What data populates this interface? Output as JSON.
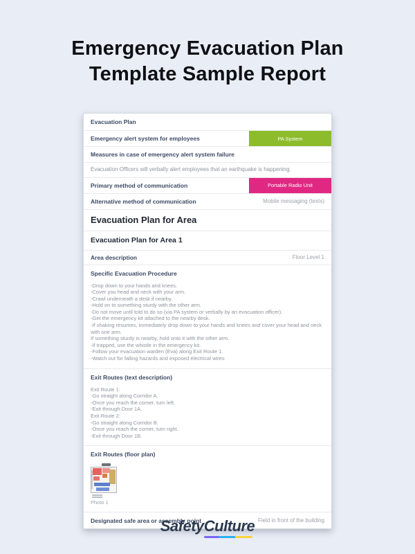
{
  "page": {
    "title": {
      "line1": "Emergency Evacuation Plan",
      "line2": "Template Sample Report"
    }
  },
  "report": {
    "section_header": "Evacuation Plan",
    "alert_system": {
      "label": "Emergency alert system for employees",
      "value": "PA System"
    },
    "failure_measures": {
      "label": "Measures in case of emergency alert system failure",
      "answer": "Evacuation Officers will verbally alert employees that an earthquake is happening."
    },
    "primary_comm": {
      "label": "Primary method of communication",
      "value": "Portable Radio Unit"
    },
    "alt_comm": {
      "label": "Alternative method of communication",
      "value": "Mobile messaging (texts)"
    },
    "area_section_header": "Evacuation Plan for Area",
    "area1_header": "Evacuation Plan for Area 1",
    "area_description": {
      "label": "Area description",
      "value": "Floor Level 1"
    },
    "procedure": {
      "label": "Specific Evacuation Procedure",
      "lines": [
        "-Drop down to your hands and knees.",
        "-Cover you head and neck with your arm.",
        "-Crawl underneath a desk if nearby.",
        "-Hold on to something sturdy with the other arm.",
        "-Do not move until told to do so (via PA system or verbally by an evacuation officer).",
        "-Get the emergency kit attached to the nearby desk.",
        "-If shaking resumes, immediately drop down to your hands and knees and cover your head and neck with one arm.",
        "If something sturdy is nearby, hold onto it with the other arm.",
        "-If trapped, use the whistle in the emergency kit.",
        "-Follow your evacuation warden (Eva) along Exit Route 1.",
        "-Watch out for falling hazards and exposed electrical wires"
      ]
    },
    "exit_routes_text": {
      "label": "Exit Routes (text description)",
      "lines": [
        "Exit Route 1:",
        "-Go straight along Corridor A.",
        "-Once you reach the corner, turn left.",
        "-Exit through Door 1A.",
        "Exit Route 2:",
        "-Go straight along Corridor B.",
        "-Once you reach the corner, turn right.",
        "-Exit through Door 1B."
      ]
    },
    "exit_routes_plan": {
      "label": "Exit Routes (floor plan)",
      "photo_caption": "Photo 1"
    },
    "safe_area": {
      "label": "Designated safe area or assembly point",
      "value": "Field in front of the building"
    }
  },
  "footer": {
    "brand": "SafetyCulture"
  },
  "colors": {
    "page_bg": "#e9edf6",
    "badge_green": "#8cbb2c",
    "badge_pink": "#e02883",
    "label_navy": "#3c4a63",
    "heading_dark": "#20262f",
    "body_gray": "#8f939b",
    "value_gray": "#9b9fa7",
    "separator": "#e8e9ec",
    "brand_navy": "#2c3a4e",
    "brand_underline_purple": "#7a66f6",
    "brand_underline_blue": "#29b2f0",
    "brand_underline_yellow": "#ffd23c"
  }
}
